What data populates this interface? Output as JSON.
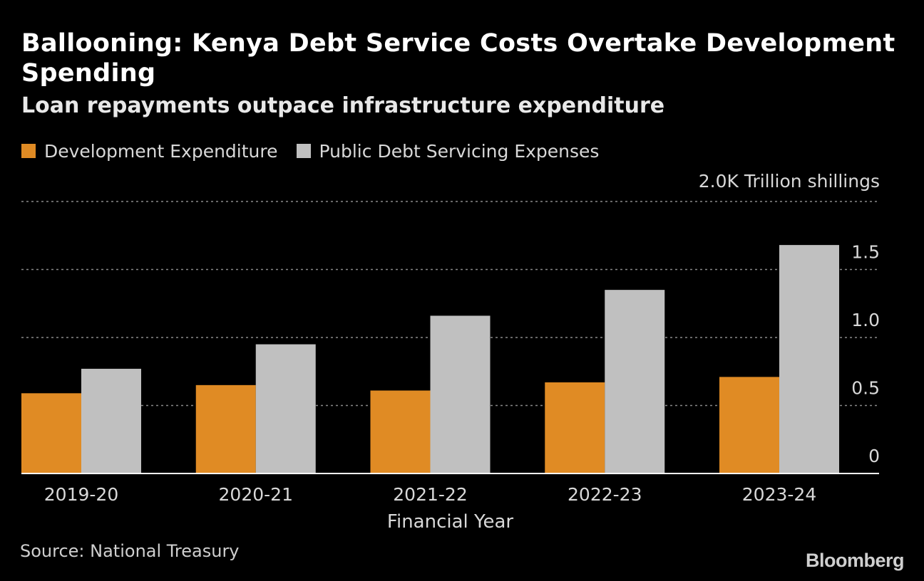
{
  "header": {
    "title": "Ballooning: Kenya Debt Service Costs Overtake Development Spending",
    "subtitle": "Loan repayments outpace infrastructure expenditure"
  },
  "footer": {
    "source": "Source: National Treasury",
    "brand": "Bloomberg"
  },
  "colors": {
    "development": "#e08b24",
    "debt": "#c0c0c0",
    "background": "#000000"
  },
  "chart_data": {
    "type": "bar",
    "title": "Ballooning: Kenya Debt Service Costs Overtake Development Spending",
    "subtitle": "Loan repayments outpace infrastructure expenditure",
    "xlabel": "Financial Year",
    "ylabel": "",
    "y_unit_label": "2.0K Trillion shillings",
    "ylim": [
      0,
      2.0
    ],
    "yticks": [
      {
        "value": 0,
        "label": "0"
      },
      {
        "value": 0.5,
        "label": "0.5"
      },
      {
        "value": 1.0,
        "label": "1.0"
      },
      {
        "value": 1.5,
        "label": "1.5"
      }
    ],
    "grid": true,
    "legend_position": "top-left",
    "categories": [
      "2019-20",
      "2020-21",
      "2021-22",
      "2022-23",
      "2023-24"
    ],
    "series": [
      {
        "name": "Development Expenditure",
        "color": "#e08b24",
        "values": [
          0.59,
          0.65,
          0.61,
          0.67,
          0.71
        ]
      },
      {
        "name": "Public Debt Servicing Expenses",
        "color": "#c0c0c0",
        "values": [
          0.77,
          0.95,
          1.16,
          1.35,
          1.68
        ]
      }
    ]
  }
}
